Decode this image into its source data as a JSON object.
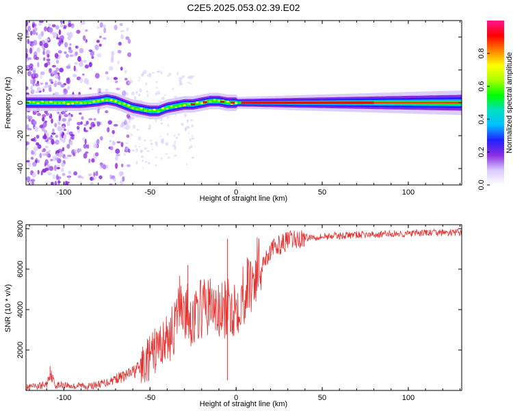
{
  "figure": {
    "title": "C2E5.2025.053.02.39.E02"
  },
  "chart_data": [
    {
      "type": "heatmap",
      "title": "C2E5.2025.053.02.39.E02",
      "xlabel": "Height of straight line (km)",
      "ylabel": "Frequency (Hz)",
      "xlim": [
        -122,
        131
      ],
      "ylim": [
        -50,
        50
      ],
      "xticks": [
        -100,
        -50,
        0,
        50,
        100
      ],
      "xtick_labels": [
        "-100",
        "-50",
        "0",
        "50",
        "100"
      ],
      "yticks": [
        -40,
        -20,
        0,
        20,
        40
      ],
      "ytick_labels": [
        "-40",
        "-20",
        "0",
        "20",
        "40"
      ],
      "colorbar": {
        "label": "Normalized spectral amplitude",
        "range": [
          0,
          1
        ],
        "ticks": [
          0.0,
          0.2,
          0.4,
          0.6,
          0.8
        ],
        "tick_labels": [
          "0.0",
          "0.2",
          "0.4",
          "0.6",
          "0.8"
        ],
        "colors": [
          "#ffffff",
          "#d8c8ff",
          "#8a2be2",
          "#2020ff",
          "#00bfff",
          "#00e0c0",
          "#00ff00",
          "#aaff00",
          "#ffff00",
          "#ff8000",
          "#ff0000",
          "#ff1493"
        ]
      },
      "ridge": {
        "x": [
          -120,
          -110,
          -100,
          -95,
          -90,
          -80,
          -75,
          -70,
          -65,
          -60,
          -55,
          -50,
          -45,
          -40,
          -35,
          -30,
          -25,
          -20,
          -15,
          -10,
          -5,
          0,
          5,
          10,
          30,
          50,
          70,
          90,
          110,
          131
        ],
        "frequency": [
          0,
          0,
          0,
          0,
          0,
          1,
          2,
          1,
          -1,
          -3,
          -4,
          -5,
          -5,
          -3,
          -2,
          -1,
          -1,
          0,
          1,
          1,
          0,
          0,
          0,
          0,
          0,
          0,
          0,
          0,
          0,
          0
        ]
      },
      "grid": false
    },
    {
      "type": "line",
      "xlabel": "Height of straight line (km)",
      "ylabel": "SNR (10 * v/v)",
      "xlim": [
        -122,
        131
      ],
      "ylim": [
        0,
        8200
      ],
      "xticks": [
        -100,
        -50,
        0,
        50,
        100
      ],
      "xtick_labels": [
        "-100",
        "-50",
        "0",
        "50",
        "100"
      ],
      "yticks": [
        2000,
        4000,
        6000,
        8000
      ],
      "ytick_labels": [
        "2000",
        "4000",
        "6000",
        "8000"
      ],
      "color": "#e8302e",
      "grid": false,
      "series": [
        {
          "x": [
            -122,
            -115,
            -110,
            -108,
            -105,
            -100,
            -95,
            -90,
            -85,
            -80,
            -75,
            -70,
            -65,
            -60,
            -55,
            -50,
            -45,
            -40,
            -35,
            -32,
            -30,
            -28,
            -25,
            -20,
            -15,
            -10,
            -5,
            0,
            5,
            10,
            15,
            20,
            25,
            30,
            35,
            40,
            45,
            50,
            55,
            60,
            70,
            80,
            90,
            100,
            110,
            120,
            131
          ],
          "y": [
            150,
            200,
            300,
            900,
            250,
            300,
            200,
            250,
            200,
            300,
            400,
            600,
            700,
            900,
            1200,
            1600,
            2200,
            2500,
            3200,
            4800,
            3600,
            3900,
            3400,
            4100,
            4200,
            3800,
            4000,
            4200,
            4900,
            5600,
            6300,
            6900,
            7200,
            7400,
            7450,
            7550,
            7600,
            7600,
            7650,
            7650,
            7700,
            7700,
            7750,
            7750,
            7800,
            7800,
            7800
          ]
        }
      ],
      "annotations": [
        {
          "x": -108,
          "y": 1200
        },
        {
          "x": -28,
          "y": 6200
        },
        {
          "x": -5,
          "y": 7500
        },
        {
          "x": -5,
          "y": 500
        }
      ]
    }
  ]
}
